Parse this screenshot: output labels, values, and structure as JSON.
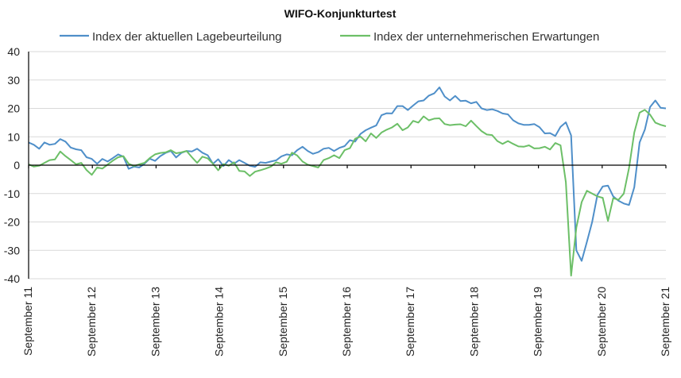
{
  "chart_data": {
    "type": "line",
    "title": "WIFO-Konjunkturtest",
    "xlabel": "",
    "ylabel": "",
    "ylim": [
      -40,
      40
    ],
    "y_ticks": [
      40,
      30,
      20,
      10,
      0,
      -10,
      -20,
      -30,
      -40
    ],
    "x_tick_labels": [
      "September 11",
      "September 12",
      "September 13",
      "September 14",
      "September 15",
      "September 16",
      "September 17",
      "September 18",
      "September 19",
      "September 20",
      "September 21"
    ],
    "legend_position": "top",
    "grid": true,
    "series": [
      {
        "name": "Index der aktuellen Lagebeurteilung",
        "color": "#4f8fc9",
        "values": [
          8.0,
          7.2,
          5.8,
          8.0,
          7.2,
          7.5,
          9.2,
          8.3,
          6.2,
          5.6,
          5.3,
          2.8,
          2.2,
          0.5,
          2.2,
          1.3,
          2.5,
          3.8,
          3.0,
          -1.3,
          -0.5,
          -0.8,
          0.5,
          2.3,
          1.5,
          3.2,
          4.3,
          5.0,
          2.7,
          4.3,
          5.0,
          4.8,
          5.8,
          4.4,
          3.5,
          0.5,
          2.1,
          -0.3,
          1.8,
          0.5,
          1.8,
          0.8,
          -0.2,
          -0.6,
          1.0,
          0.8,
          1.3,
          1.7,
          3.1,
          3.8,
          3.5,
          5.3,
          6.5,
          5.0,
          4.0,
          4.6,
          5.8,
          6.1,
          5.0,
          6.1,
          6.7,
          8.8,
          8.3,
          11.0,
          12.3,
          13.2,
          14.0,
          17.6,
          18.3,
          18.2,
          20.8,
          20.8,
          19.4,
          21.0,
          22.5,
          22.8,
          24.5,
          25.3,
          27.4,
          24.2,
          22.8,
          24.4,
          22.6,
          22.7,
          21.8,
          22.3,
          20.0,
          19.4,
          19.7,
          19.1,
          18.2,
          17.9,
          15.8,
          14.7,
          14.2,
          14.2,
          14.5,
          13.4,
          11.2,
          11.3,
          10.3,
          13.5,
          15.1,
          10.5,
          -30.0,
          -33.7,
          -27.0,
          -20.0,
          -10.5,
          -7.5,
          -7.2,
          -11.0,
          -12.5,
          -13.5,
          -14.0,
          -7.8,
          8.0,
          12.5,
          20.5,
          22.8,
          20.2,
          20.0
        ]
      },
      {
        "name": "Index der unternehmerischen Erwartungen",
        "color": "#6cbf67",
        "values": [
          0.3,
          -0.5,
          -0.2,
          0.8,
          1.8,
          2.0,
          4.8,
          3.2,
          1.8,
          0.3,
          0.8,
          -1.7,
          -3.4,
          -0.8,
          -1.2,
          0.2,
          1.6,
          2.8,
          3.2,
          0.5,
          -0.3,
          0.3,
          0.8,
          2.5,
          3.8,
          4.3,
          4.5,
          5.3,
          4.2,
          4.5,
          5.0,
          2.8,
          0.8,
          3.0,
          2.4,
          0.5,
          -1.8,
          0.4,
          -0.2,
          1.0,
          -2.0,
          -2.2,
          -3.8,
          -2.3,
          -1.8,
          -1.2,
          -0.5,
          1.0,
          0.5,
          1.2,
          4.4,
          3.4,
          1.3,
          0.2,
          -0.3,
          -0.8,
          1.8,
          2.5,
          3.5,
          2.5,
          5.3,
          6.0,
          9.3,
          10.1,
          8.4,
          11.2,
          9.6,
          11.5,
          12.5,
          13.3,
          14.6,
          12.3,
          13.3,
          15.6,
          15.0,
          17.2,
          15.8,
          16.4,
          16.5,
          14.5,
          14.1,
          14.3,
          14.4,
          13.7,
          15.7,
          13.8,
          12.0,
          10.8,
          10.6,
          8.5,
          7.5,
          8.5,
          7.5,
          6.6,
          6.5,
          7.0,
          5.9,
          6.0,
          6.5,
          5.5,
          7.8,
          7.0,
          -6.0,
          -38.9,
          -22.0,
          -13.0,
          -9.0,
          -10.0,
          -11.0,
          -11.5,
          -19.6,
          -11.6,
          -12.2,
          -10.0,
          -1.0,
          11.5,
          18.5,
          19.5,
          17.8,
          15.0,
          14.2,
          13.7
        ]
      }
    ]
  }
}
